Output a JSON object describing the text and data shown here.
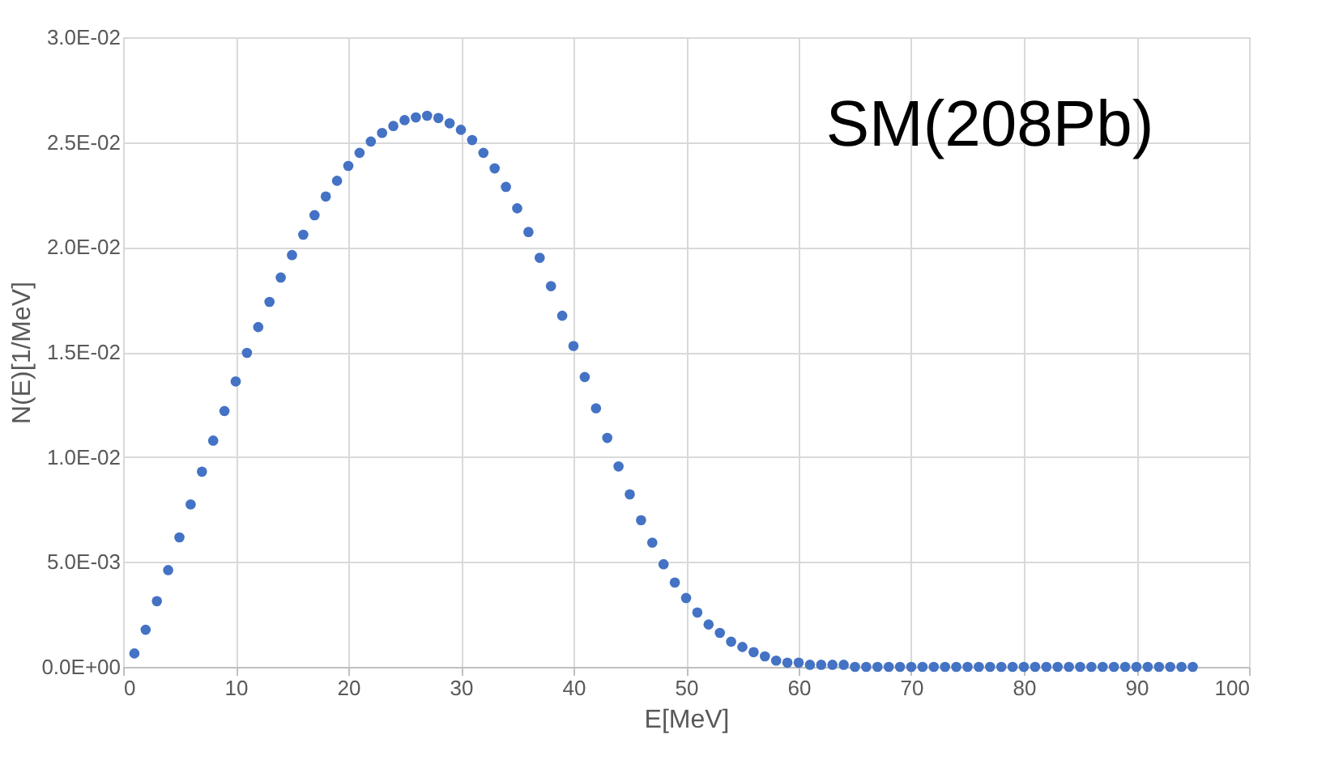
{
  "chart_data": {
    "type": "scatter",
    "xlabel": "E[MeV]",
    "ylabel": "N(E)[1/MeV]",
    "annotations": [
      "SM(208Pb)"
    ],
    "x": [
      1,
      2,
      3,
      4,
      5,
      6,
      7,
      8,
      9,
      10,
      11,
      12,
      13,
      14,
      15,
      16,
      17,
      18,
      19,
      20,
      21,
      22,
      23,
      24,
      25,
      26,
      27,
      28,
      29,
      30,
      31,
      32,
      33,
      34,
      35,
      36,
      37,
      38,
      39,
      40,
      41,
      42,
      43,
      44,
      45,
      46,
      47,
      48,
      49,
      50,
      51,
      52,
      53,
      54,
      55,
      56,
      57,
      58,
      59,
      60,
      61,
      62,
      63,
      64,
      65,
      66,
      67,
      68,
      69,
      70,
      71,
      72,
      73,
      74,
      75,
      76,
      77,
      78,
      79,
      80,
      81,
      82,
      83,
      84,
      85,
      86,
      87,
      88,
      89,
      90,
      91,
      92,
      93,
      94,
      95
    ],
    "series": [
      {
        "color": "#4472c4",
        "values": [
          0.00064,
          0.00177,
          0.00313,
          0.00461,
          0.00617,
          0.00774,
          0.0093,
          0.01078,
          0.01219,
          0.0136,
          0.01496,
          0.01619,
          0.01739,
          0.01855,
          0.01962,
          0.02059,
          0.02152,
          0.02241,
          0.02316,
          0.02387,
          0.02449,
          0.02503,
          0.02544,
          0.02577,
          0.02605,
          0.02618,
          0.02626,
          0.02615,
          0.0259,
          0.02559,
          0.0251,
          0.02449,
          0.02375,
          0.02287,
          0.02185,
          0.02072,
          0.01949,
          0.01814,
          0.01673,
          0.01529,
          0.01381,
          0.01232,
          0.01091,
          0.00955,
          0.00822,
          0.00699,
          0.00592,
          0.00489,
          0.00402,
          0.00328,
          0.00259,
          0.00202,
          0.00162,
          0.0012,
          0.00095,
          0.0007,
          0.0005,
          0.0003,
          0.0002,
          0.0002,
          0.0001,
          0.0001,
          0.0001,
          0.0001,
          0,
          0,
          0,
          0,
          0,
          0,
          0,
          0,
          0,
          0,
          0,
          0,
          0,
          0,
          0,
          0,
          0,
          0,
          0,
          0,
          0,
          0,
          0,
          0,
          0,
          0,
          0,
          0,
          0,
          0,
          0
        ]
      }
    ],
    "xlim": [
      0,
      100
    ],
    "xticks": [
      0,
      10,
      20,
      30,
      40,
      50,
      60,
      70,
      80,
      90,
      100
    ],
    "ylim": [
      0,
      0.03
    ],
    "yticks": [
      {
        "value": 0,
        "label": "0.0E+00"
      },
      {
        "value": 0.005,
        "label": "5.0E-03"
      },
      {
        "value": 0.01,
        "label": "1.0E-02"
      },
      {
        "value": 0.015,
        "label": "1.5E-02"
      },
      {
        "value": 0.02,
        "label": "2.0E-02"
      },
      {
        "value": 0.025,
        "label": "2.5E-02"
      },
      {
        "value": 0.03,
        "label": "3.0E-02"
      }
    ],
    "grid": true,
    "marker": "circle"
  }
}
